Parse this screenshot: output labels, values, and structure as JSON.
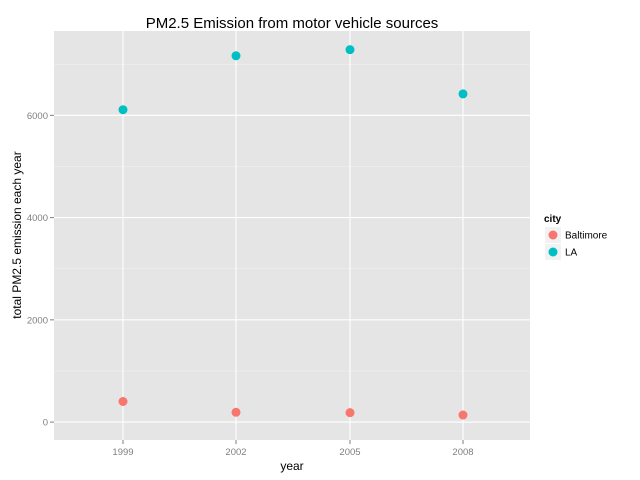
{
  "chart_data": {
    "type": "scatter",
    "title": "PM2.5 Emission from motor vehicle sources",
    "xlabel": "year",
    "ylabel": "total PM2.5 emission each year",
    "x": [
      "1999",
      "2002",
      "2005",
      "2008"
    ],
    "y_ticks": [
      0,
      2000,
      4000,
      6000
    ],
    "ylim": [
      -350,
      7650
    ],
    "grid": true,
    "legend": {
      "title": "city",
      "placement": "right"
    },
    "series": [
      {
        "name": "Baltimore",
        "color": "#F8766D",
        "values": [
          403,
          192,
          185,
          138
        ]
      },
      {
        "name": "LA",
        "color": "#00BFC4",
        "values": [
          6110,
          7165,
          7285,
          6420
        ]
      }
    ],
    "colors": {
      "panel": "#E5E5E5",
      "grid": "#FFFFFF",
      "tick_text": "#7F7F7F"
    }
  }
}
